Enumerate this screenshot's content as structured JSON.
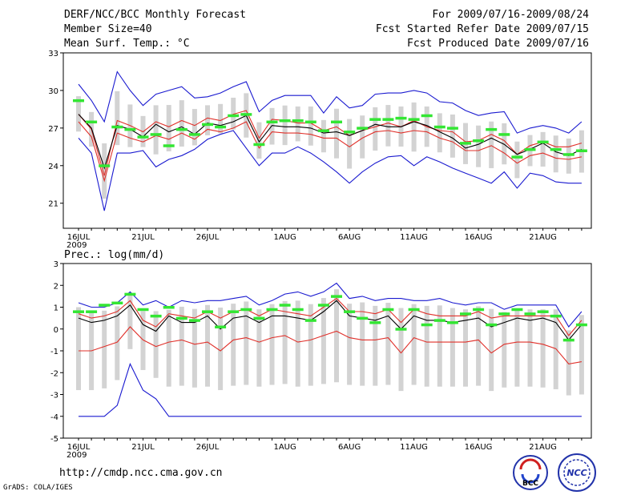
{
  "header": {
    "title": "DERF/NCC/BCC Monthly Forecast",
    "member": "Member Size=40",
    "variable": "Mean Surf. Temp.: °C",
    "period": "For 2009/07/16-2009/08/24",
    "started": "Fcst Started Refer Date 2009/07/15",
    "produced": "Fcst Produced Date 2009/07/16"
  },
  "footer": {
    "url": "http://cmdp.ncc.cma.gov.cn",
    "credit": "GrADS: COLA/IGES",
    "logo1_text": "BCC",
    "logo2_text": "NCC"
  },
  "colors": {
    "box": "#d3d3d3",
    "mean": "#000000",
    "spread": "#e0302a",
    "extreme": "#1a1ad0",
    "obs": "#33e633"
  },
  "chart_data": [
    {
      "type": "line",
      "title": "Mean Surf. Temp.: °C",
      "x": [
        "16JUL",
        "17JUL",
        "18JUL",
        "19JUL",
        "20JUL",
        "21JUL",
        "22JUL",
        "23JUL",
        "24JUL",
        "25JUL",
        "26JUL",
        "27JUL",
        "28JUL",
        "29JUL",
        "30JUL",
        "31JUL",
        "1AUG",
        "2AUG",
        "3AUG",
        "4AUG",
        "5AUG",
        "6AUG",
        "7AUG",
        "8AUG",
        "9AUG",
        "10AUG",
        "11AUG",
        "12AUG",
        "13AUG",
        "14AUG",
        "15AUG",
        "16AUG",
        "17AUG",
        "18AUG",
        "19AUG",
        "20AUG",
        "21AUG",
        "22AUG",
        "23AUG",
        "24AUG"
      ],
      "tick_labels": [
        "16JUL\n2009",
        "21JUL",
        "26JUL",
        "1AUG",
        "6AUG",
        "11AUG",
        "16AUG",
        "21AUG"
      ],
      "tick_index": [
        0,
        5,
        10,
        16,
        21,
        26,
        31,
        36
      ],
      "ylim": [
        19,
        33
      ],
      "yticks": [
        21,
        24,
        27,
        30,
        33
      ],
      "series": [
        {
          "name": "ensemble max",
          "values": [
            26.2,
            25,
            20.4,
            25,
            25,
            25.2,
            23.9,
            24.5,
            24.8,
            25.3,
            26.1,
            26.5,
            26.8,
            25.4,
            24,
            25,
            25,
            25.5,
            25,
            24.3,
            23.5,
            22.6,
            23.5,
            24.2,
            24.7,
            24.8,
            24,
            24.7,
            24.3,
            23.8,
            23.4,
            23,
            22.6,
            23.5,
            22.2,
            23.4,
            23.2,
            22.7,
            22.6,
            22.6
          ]
        },
        {
          "name": "ensemble max",
          "values": [
            30.5,
            29.2,
            27.5,
            31.5,
            30,
            28.8,
            29.7,
            30,
            30.3,
            29.4,
            29.5,
            29.8,
            30.3,
            30.7,
            28.3,
            29.2,
            29.6,
            29.6,
            29.6,
            28.2,
            29.5,
            28.6,
            28.8,
            29.7,
            29.8,
            29.8,
            30,
            29.8,
            29.1,
            29,
            28.4,
            28,
            28.2,
            28.3,
            26.6,
            27,
            27.2,
            27,
            26.6,
            27.5
          ]
        },
        {
          "name": "upper quartile",
          "values": [
            28.1,
            26.9,
            23.2,
            27.6,
            27.2,
            26.7,
            27.5,
            27.1,
            27.6,
            27.2,
            27.8,
            27.6,
            28.1,
            28.4,
            26.2,
            27.7,
            27.6,
            27.4,
            27.4,
            26.8,
            27.1,
            26.4,
            26.8,
            27.1,
            27.4,
            27.1,
            27.6,
            27.1,
            26.8,
            26.7,
            25.9,
            26,
            26.5,
            26,
            24.9,
            25.6,
            25.9,
            25.5,
            25.5,
            25.8
          ]
        },
        {
          "name": "mean",
          "values": [
            28.1,
            27,
            23.8,
            27.2,
            26.9,
            26.3,
            27.3,
            26.7,
            27.1,
            26.5,
            27.4,
            27.2,
            27.5,
            28,
            25.9,
            27.2,
            27.1,
            27.1,
            27,
            26.6,
            26.7,
            26.4,
            26.8,
            27.3,
            27.1,
            27.1,
            27.5,
            27.2,
            26.7,
            26.2,
            25.4,
            25.7,
            26.2,
            25.7,
            24.9,
            25.3,
            25.8,
            25.1,
            24.8,
            25.3
          ]
        },
        {
          "name": "lower quartile",
          "values": [
            27.5,
            26.3,
            22.8,
            26.6,
            26.2,
            25.9,
            26.4,
            26.1,
            26.6,
            26.1,
            26.9,
            26.7,
            27,
            27.5,
            25.4,
            26.7,
            26.6,
            26.6,
            26.5,
            26.2,
            26.2,
            25.5,
            26.2,
            26.7,
            26.8,
            26.6,
            26.8,
            26.7,
            26.2,
            25.9,
            25.2,
            25.2,
            25.6,
            25,
            24.2,
            24.8,
            25,
            24.6,
            24.5,
            24.7
          ]
        },
        {
          "name": "observed",
          "values": [
            29.2,
            27.5,
            24,
            27.1,
            26.9,
            26.3,
            26.5,
            25.6,
            26.9,
            26.5,
            27.3,
            27.1,
            28,
            28.1,
            25.7,
            27.5,
            27.6,
            27.6,
            27.5,
            26.8,
            27.5,
            26.7,
            27,
            27.7,
            27.7,
            27.8,
            27.7,
            28,
            27.1,
            27,
            25.8,
            26,
            26.9,
            26.5,
            24.7,
            25.3,
            25.9,
            25.3,
            24.9,
            25.2
          ]
        }
      ]
    },
    {
      "type": "line",
      "title": "Prec.: log(mm/d)",
      "x": [
        "16JUL",
        "17JUL",
        "18JUL",
        "19JUL",
        "20JUL",
        "21JUL",
        "22JUL",
        "23JUL",
        "24JUL",
        "25JUL",
        "26JUL",
        "27JUL",
        "28JUL",
        "29JUL",
        "30JUL",
        "31JUL",
        "1AUG",
        "2AUG",
        "3AUG",
        "4AUG",
        "5AUG",
        "6AUG",
        "7AUG",
        "8AUG",
        "9AUG",
        "10AUG",
        "11AUG",
        "12AUG",
        "13AUG",
        "14AUG",
        "15AUG",
        "16AUG",
        "17AUG",
        "18AUG",
        "19AUG",
        "20AUG",
        "21AUG",
        "22AUG",
        "23AUG",
        "24AUG"
      ],
      "tick_labels": [
        "16JUL\n2009",
        "21JUL",
        "26JUL",
        "1AUG",
        "6AUG",
        "11AUG",
        "16AUG",
        "21AUG"
      ],
      "tick_index": [
        0,
        5,
        10,
        16,
        21,
        26,
        31,
        36
      ],
      "ylim": [
        -5,
        3
      ],
      "yticks": [
        -5,
        -4,
        -3,
        -2,
        -1,
        0,
        1,
        2,
        3
      ],
      "series": [
        {
          "name": "ensemble min",
          "values": [
            -4,
            -4,
            -4,
            -3.5,
            -1.6,
            -2.8,
            -3.2,
            -4,
            -4,
            -4,
            -4,
            -4,
            -4,
            -4,
            -4,
            -4,
            -4,
            -4,
            -4,
            -4,
            -4,
            -4,
            -4,
            -4,
            -4,
            -4,
            -4,
            -4,
            -4,
            -4,
            -4,
            -4,
            -4,
            -4,
            -4,
            -4,
            -4,
            -4,
            -4,
            -4
          ]
        },
        {
          "name": "ensemble max",
          "values": [
            1.2,
            1,
            1,
            1.2,
            1.7,
            1.1,
            1.3,
            1,
            1.3,
            1.2,
            1.3,
            1.3,
            1.4,
            1.5,
            1.1,
            1.3,
            1.6,
            1.7,
            1.5,
            1.7,
            2.1,
            1.4,
            1.5,
            1.3,
            1.4,
            1.4,
            1.3,
            1.3,
            1.4,
            1.2,
            1.1,
            1.2,
            1.2,
            0.9,
            1.1,
            1.1,
            1.1,
            1.1,
            0.1,
            0.8
          ]
        },
        {
          "name": "upper quartile",
          "values": [
            0.7,
            0.5,
            0.6,
            0.8,
            1.3,
            0.4,
            0.1,
            0.7,
            0.6,
            0.5,
            0.8,
            0.5,
            0.8,
            0.9,
            0.6,
            0.9,
            0.8,
            0.7,
            0.6,
            1,
            1.4,
            0.8,
            0.8,
            0.7,
            0.9,
            0.3,
            0.9,
            0.7,
            0.6,
            0.6,
            0.6,
            0.8,
            0.5,
            0.6,
            0.6,
            0.6,
            0.6,
            0.6,
            -0.3,
            0.4
          ]
        },
        {
          "name": "mean",
          "values": [
            0.5,
            0.3,
            0.4,
            0.6,
            1.1,
            0.2,
            -0.1,
            0.6,
            0.3,
            0.3,
            0.6,
            0,
            0.5,
            0.6,
            0.3,
            0.6,
            0.6,
            0.5,
            0.4,
            0.8,
            1.3,
            0.6,
            0.5,
            0.4,
            0.6,
            0,
            0.6,
            0.4,
            0.4,
            0.3,
            0.4,
            0.5,
            0.1,
            0.3,
            0.5,
            0.4,
            0.5,
            0.3,
            -0.5,
            0.2
          ]
        },
        {
          "name": "lower quartile",
          "values": [
            -1,
            -1,
            -0.8,
            -0.6,
            0.1,
            -0.5,
            -0.8,
            -0.6,
            -0.5,
            -0.7,
            -0.6,
            -1,
            -0.5,
            -0.4,
            -0.6,
            -0.4,
            -0.3,
            -0.6,
            -0.5,
            -0.3,
            -0.1,
            -0.4,
            -0.5,
            -0.5,
            -0.4,
            -1.1,
            -0.4,
            -0.6,
            -0.6,
            -0.6,
            -0.6,
            -0.5,
            -1.1,
            -0.7,
            -0.6,
            -0.6,
            -0.7,
            -0.9,
            -1.6,
            -1.5
          ]
        },
        {
          "name": "observed",
          "values": [
            0.8,
            0.8,
            1.1,
            1.2,
            1.6,
            0.9,
            0.6,
            1,
            0.5,
            0.4,
            0.8,
            0.1,
            0.8,
            0.9,
            0.5,
            0.9,
            1.1,
            0.9,
            0.4,
            1.1,
            1.5,
            0.8,
            0.5,
            0.3,
            0.9,
            0,
            0.9,
            0.2,
            0.4,
            0.3,
            0.7,
            0.9,
            0.2,
            0.7,
            0.9,
            0.7,
            0.8,
            0.6,
            -0.5,
            0.2
          ]
        }
      ]
    }
  ]
}
